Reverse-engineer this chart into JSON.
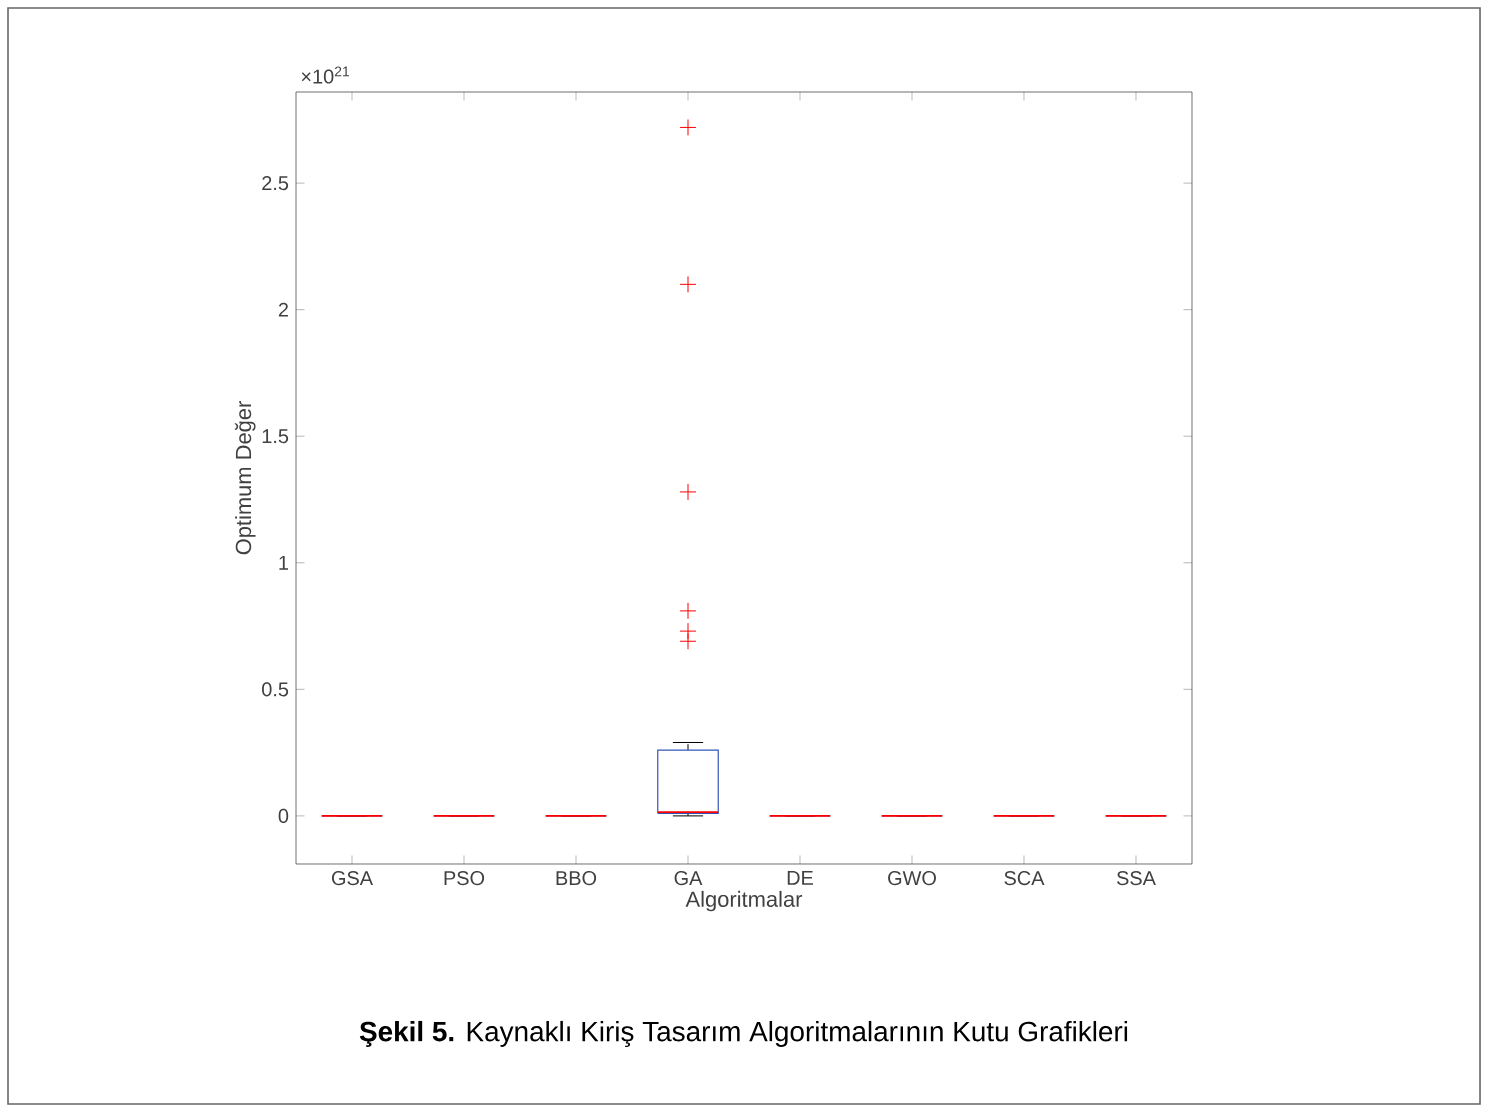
{
  "chart_data": {
    "type": "box",
    "xlabel": "Algoritmalar",
    "ylabel": "Optimum Değer",
    "annotations": [
      "**Şekil 5.** Kaynaklı Kiriş Tasarım Algoritmalarının Kutu Grafikleri",
      "×10$^{21}$"
    ],
    "categories": [
      "GSA",
      "PSO",
      "BBO",
      "GA",
      "DE",
      "GWO",
      "SCA",
      "SSA"
    ],
    "ylim": [
      -0.19,
      2.86
    ],
    "yticks": [
      0,
      0.5,
      1,
      1.5,
      2,
      2.5
    ],
    "series": [
      {
        "color": "#3355bb",
        "boxes": [
          {
            "low": 0,
            "q1": 0,
            "median": 0,
            "q3": 0,
            "high": 0
          },
          {
            "low": 0,
            "q1": 0,
            "median": 0,
            "q3": 0,
            "high": 0
          },
          {
            "low": 0,
            "q1": 0,
            "median": 0,
            "q3": 0,
            "high": 0
          },
          {
            "low": 0,
            "q1": 0.01,
            "median": 0.015,
            "q3": 0.26,
            "high": 0.29,
            "outliers": [
              0.69,
              0.73,
              0.81,
              1.28,
              2.1,
              2.72
            ]
          },
          {
            "low": 0,
            "q1": 0,
            "median": 0,
            "q3": 0,
            "high": 0
          },
          {
            "low": 0,
            "q1": 0,
            "median": 0,
            "q3": 0,
            "high": 0
          },
          {
            "low": 0,
            "q1": 0,
            "median": 0,
            "q3": 0,
            "high": 0
          },
          {
            "low": 0,
            "q1": 0,
            "median": 0,
            "q3": 0,
            "high": 0
          }
        ]
      }
    ]
  }
}
